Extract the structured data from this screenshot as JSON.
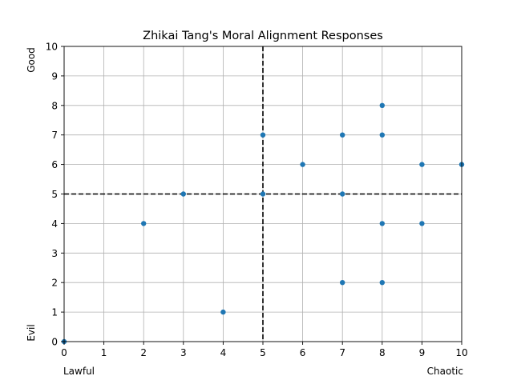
{
  "chart_data": {
    "type": "scatter",
    "title": "Zhikai Tang's Moral Alignment Responses",
    "xlim": [
      0,
      10
    ],
    "ylim": [
      0,
      10
    ],
    "xticks": [
      0,
      1,
      2,
      3,
      4,
      5,
      6,
      7,
      8,
      9,
      10
    ],
    "yticks": [
      0,
      1,
      2,
      3,
      4,
      5,
      6,
      7,
      8,
      9,
      10
    ],
    "x_end_labels": {
      "low": "Lawful",
      "high": "Chaotic"
    },
    "y_end_labels": {
      "low": "Evil",
      "high": "Good"
    },
    "grid": true,
    "reference_lines": {
      "x": 5,
      "y": 5
    },
    "marker_color": "#1f77b4",
    "points": [
      {
        "x": 0,
        "y": 0
      },
      {
        "x": 2,
        "y": 4
      },
      {
        "x": 3,
        "y": 5
      },
      {
        "x": 4,
        "y": 1
      },
      {
        "x": 5,
        "y": 7
      },
      {
        "x": 5,
        "y": 5
      },
      {
        "x": 6,
        "y": 6
      },
      {
        "x": 7,
        "y": 7
      },
      {
        "x": 7,
        "y": 5
      },
      {
        "x": 7,
        "y": 2
      },
      {
        "x": 8,
        "y": 8
      },
      {
        "x": 8,
        "y": 7
      },
      {
        "x": 8,
        "y": 4
      },
      {
        "x": 8,
        "y": 2
      },
      {
        "x": 9,
        "y": 6
      },
      {
        "x": 9,
        "y": 4
      },
      {
        "x": 10,
        "y": 6
      }
    ]
  }
}
